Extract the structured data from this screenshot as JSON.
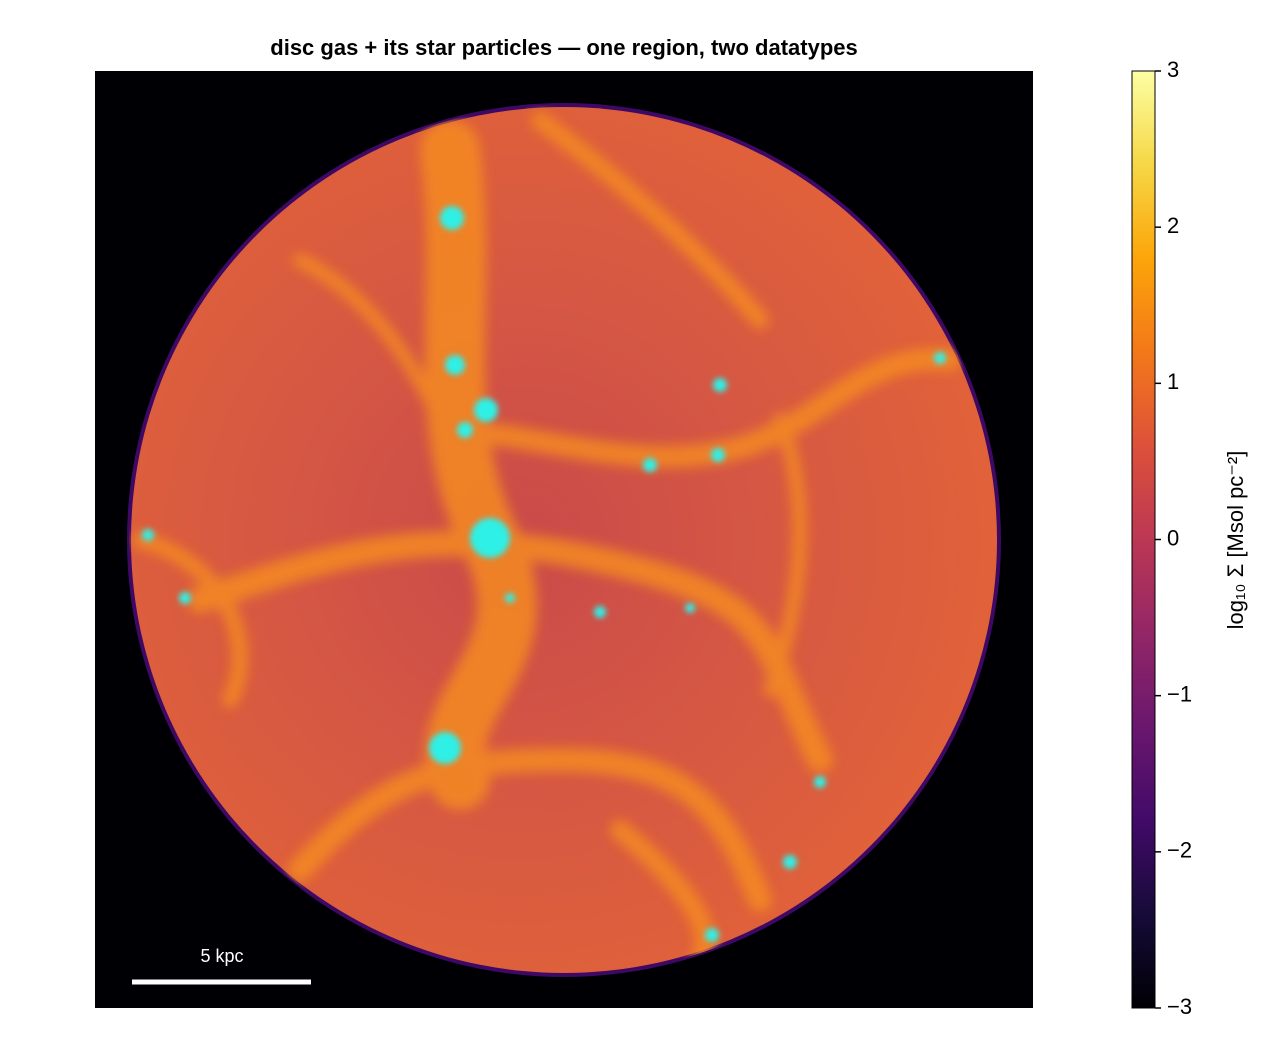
{
  "chart_data": {
    "type": "image",
    "title": "disc gas + its star particles — one region, two datatypes",
    "colormap": "inferno",
    "colorbar": {
      "label": "log₁₀ Σ  [Msol pc⁻²]",
      "clim": [
        -3,
        3
      ],
      "ticks": [
        {
          "value": -3,
          "label": "−3"
        },
        {
          "value": -2,
          "label": "−2"
        },
        {
          "value": -1,
          "label": "−1"
        },
        0,
        1,
        2,
        3
      ]
    },
    "scale_bar": {
      "label": "5 kpc"
    }
  }
}
